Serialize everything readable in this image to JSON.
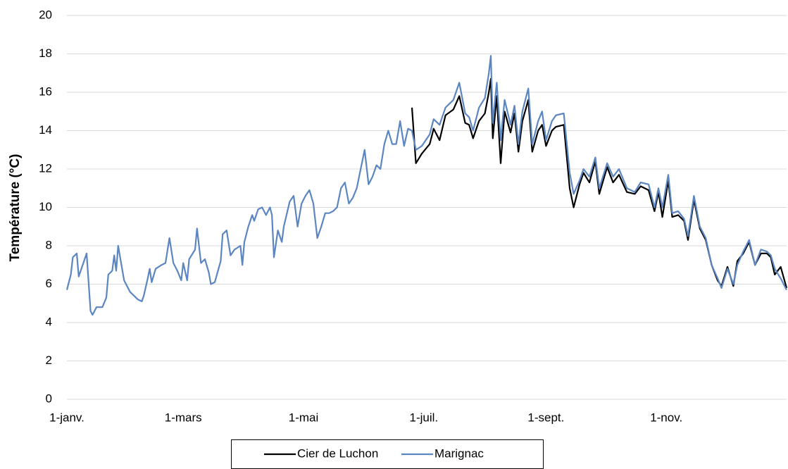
{
  "chart_data": {
    "type": "line",
    "y_label": "Température (°C)",
    "x": [
      0,
      2,
      3,
      5,
      6,
      8,
      10,
      12,
      13,
      15,
      18,
      20,
      21,
      23,
      24,
      25,
      26,
      29,
      32,
      36,
      38,
      39,
      41,
      42,
      43,
      45,
      48,
      50,
      52,
      54,
      56,
      58,
      59,
      61,
      62,
      65,
      66,
      68,
      70,
      72,
      73,
      75,
      78,
      79,
      81,
      83,
      85,
      88,
      89,
      90,
      92,
      94,
      95,
      97,
      99,
      101,
      103,
      104,
      105,
      107,
      109,
      110,
      113,
      115,
      117,
      119,
      121,
      123,
      125,
      127,
      129,
      131,
      133,
      135,
      137,
      139,
      141,
      143,
      145,
      147,
      149,
      151,
      153,
      155,
      157,
      159,
      161,
      163,
      165,
      167,
      169,
      171,
      173,
      175,
      177,
      180,
      184,
      186,
      189,
      192,
      196,
      199,
      202,
      204,
      206,
      209,
      212,
      214,
      215,
      216,
      218,
      220,
      222,
      225,
      227,
      229,
      231,
      234,
      236,
      239,
      241,
      243,
      246,
      248,
      252,
      255,
      257,
      260,
      262,
      265,
      268,
      270,
      274,
      277,
      280,
      284,
      288,
      291,
      295,
      298,
      300,
      302,
      305,
      307,
      310,
      313,
      315,
      318,
      321,
      324,
      327,
      330,
      332,
      335,
      338,
      340,
      343,
      346,
      349,
      352,
      355,
      357,
      359,
      362,
      365
    ],
    "series": [
      {
        "name": "Cier de Luchon",
        "color": "#000000",
        "values": [
          null,
          null,
          null,
          null,
          null,
          null,
          null,
          null,
          null,
          null,
          null,
          null,
          null,
          null,
          null,
          null,
          null,
          null,
          null,
          null,
          null,
          null,
          null,
          null,
          null,
          null,
          null,
          null,
          null,
          null,
          null,
          null,
          null,
          null,
          null,
          null,
          null,
          null,
          null,
          null,
          null,
          null,
          null,
          null,
          null,
          null,
          null,
          null,
          null,
          null,
          null,
          null,
          null,
          null,
          null,
          null,
          null,
          null,
          null,
          null,
          null,
          null,
          null,
          null,
          null,
          null,
          null,
          null,
          null,
          null,
          null,
          null,
          null,
          null,
          null,
          null,
          null,
          null,
          null,
          null,
          null,
          null,
          null,
          null,
          null,
          null,
          null,
          null,
          null,
          null,
          null,
          null,
          null,
          15.2,
          12.3,
          12.8,
          13.3,
          14.1,
          13.5,
          14.8,
          15.1,
          15.8,
          14.4,
          14.3,
          13.6,
          14.5,
          14.9,
          16.0,
          16.7,
          13.6,
          15.8,
          12.3,
          15.0,
          13.9,
          14.9,
          12.9,
          14.5,
          15.6,
          12.9,
          14.0,
          14.3,
          13.2,
          14.0,
          14.2,
          14.3,
          11.0,
          10.0,
          11.2,
          11.8,
          11.3,
          12.4,
          10.7,
          12.1,
          11.3,
          11.7,
          10.8,
          10.7,
          11.1,
          10.9,
          9.8,
          10.8,
          9.5,
          11.4,
          9.5,
          9.6,
          9.3,
          8.3,
          10.4,
          8.9,
          8.3,
          7.0,
          6.2,
          5.9,
          6.9,
          5.9,
          7.2,
          7.6,
          8.2,
          7.0,
          7.6,
          7.6,
          7.4,
          6.5,
          6.9,
          5.8
        ]
      },
      {
        "name": "Marignac",
        "color": "#5b86c2",
        "values": [
          5.7,
          6.5,
          7.4,
          7.6,
          6.4,
          7.0,
          7.6,
          4.6,
          4.4,
          4.8,
          4.8,
          5.3,
          6.5,
          6.7,
          7.5,
          6.7,
          8.0,
          6.2,
          5.6,
          5.2,
          5.1,
          5.4,
          6.3,
          6.8,
          6.1,
          6.8,
          7.0,
          7.1,
          8.4,
          7.1,
          6.7,
          6.2,
          7.1,
          6.2,
          7.3,
          7.8,
          8.9,
          7.1,
          7.3,
          6.6,
          6.0,
          6.1,
          7.2,
          8.6,
          8.8,
          7.5,
          7.8,
          8.0,
          7.0,
          8.2,
          9.0,
          9.6,
          9.3,
          9.9,
          10.0,
          9.6,
          10.0,
          9.6,
          7.4,
          8.8,
          8.2,
          9.0,
          10.3,
          10.6,
          9.0,
          10.2,
          10.6,
          10.9,
          10.2,
          8.4,
          9.0,
          9.7,
          9.7,
          9.8,
          10.0,
          11.0,
          11.3,
          10.2,
          10.5,
          11.0,
          12.0,
          13.0,
          11.2,
          11.6,
          12.2,
          12.0,
          13.3,
          14.0,
          13.3,
          13.3,
          14.5,
          13.2,
          14.1,
          14.0,
          13.0,
          13.2,
          13.8,
          14.6,
          14.3,
          15.2,
          15.6,
          16.5,
          14.9,
          14.7,
          14.0,
          15.2,
          15.7,
          17.0,
          17.9,
          14.4,
          16.5,
          13.5,
          15.6,
          14.3,
          15.3,
          13.3,
          15.0,
          16.2,
          13.3,
          14.5,
          15.0,
          13.5,
          14.5,
          14.8,
          14.9,
          11.8,
          10.7,
          11.4,
          12.0,
          11.6,
          12.6,
          11.0,
          12.3,
          11.6,
          12.0,
          11.0,
          10.8,
          11.3,
          11.2,
          10.0,
          11.0,
          10.0,
          11.7,
          9.7,
          9.8,
          9.4,
          8.5,
          10.6,
          9.0,
          8.4,
          7.0,
          6.3,
          5.8,
          6.8,
          6.0,
          7.0,
          7.7,
          8.3,
          7.0,
          7.8,
          7.7,
          7.5,
          6.8,
          6.3,
          5.7
        ]
      }
    ],
    "xlim": [
      0,
      365
    ],
    "xticks": [
      {
        "value": 0,
        "label": "1-janv."
      },
      {
        "value": 59,
        "label": "1-mars"
      },
      {
        "value": 120,
        "label": "1-mai"
      },
      {
        "value": 181,
        "label": "1-juil."
      },
      {
        "value": 243,
        "label": "1-sept."
      },
      {
        "value": 304,
        "label": "1-nov."
      }
    ],
    "ylim": [
      0,
      20
    ],
    "yticks": [
      0,
      2,
      4,
      6,
      8,
      10,
      12,
      14,
      16,
      18,
      20
    ],
    "grid": true,
    "legend": "bottom"
  }
}
